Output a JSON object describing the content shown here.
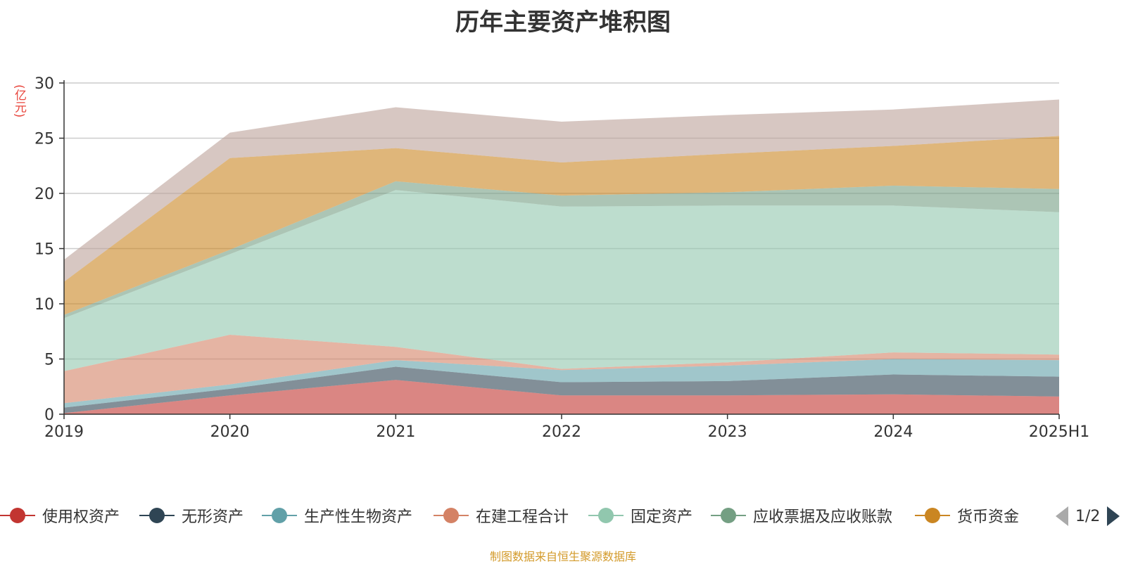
{
  "chart_data": {
    "type": "area",
    "stacked": true,
    "title": "历年主要资产堆积图",
    "unit_label": "(亿元)",
    "categories": [
      "2019",
      "2020",
      "2021",
      "2022",
      "2023",
      "2024",
      "2025H1"
    ],
    "ylim": [
      0,
      30
    ],
    "yticks": [
      0,
      5,
      10,
      15,
      20,
      25,
      30
    ],
    "grid": true,
    "legend_position": "bottom",
    "series": [
      {
        "name": "使用权资产",
        "color": "#c23531",
        "values": [
          0.1,
          1.7,
          3.1,
          1.7,
          1.7,
          1.8,
          1.6
        ]
      },
      {
        "name": "无形资产",
        "color": "#2f4554",
        "values": [
          0.5,
          0.6,
          1.2,
          1.2,
          1.3,
          1.8,
          1.8
        ]
      },
      {
        "name": "生产性生物资产",
        "color": "#61a0a8",
        "values": [
          0.4,
          0.4,
          0.6,
          1.1,
          1.4,
          1.4,
          1.5
        ]
      },
      {
        "name": "在建工程合计",
        "color": "#d48265",
        "values": [
          2.9,
          4.5,
          1.2,
          0.1,
          0.3,
          0.6,
          0.5
        ]
      },
      {
        "name": "固定资产",
        "color": "#91c7ae",
        "values": [
          4.8,
          7.3,
          14.2,
          14.7,
          14.2,
          13.3,
          12.9
        ]
      },
      {
        "name": "应收票据及应收账款",
        "color": "#749f83",
        "values": [
          0.3,
          0.4,
          0.8,
          1.0,
          1.2,
          1.8,
          2.1
        ]
      },
      {
        "name": "货币资金",
        "color": "#ca8622",
        "values": [
          3.0,
          8.3,
          3.0,
          3.0,
          3.5,
          3.6,
          4.8
        ]
      },
      {
        "name": "",
        "color": "#bda29a",
        "values": [
          2.0,
          2.3,
          3.7,
          3.7,
          3.5,
          3.3,
          3.3
        ]
      }
    ]
  },
  "legend_page": {
    "indicator": "1/2"
  },
  "footer": {
    "source_note": "制图数据来自恒生聚源数据库"
  }
}
